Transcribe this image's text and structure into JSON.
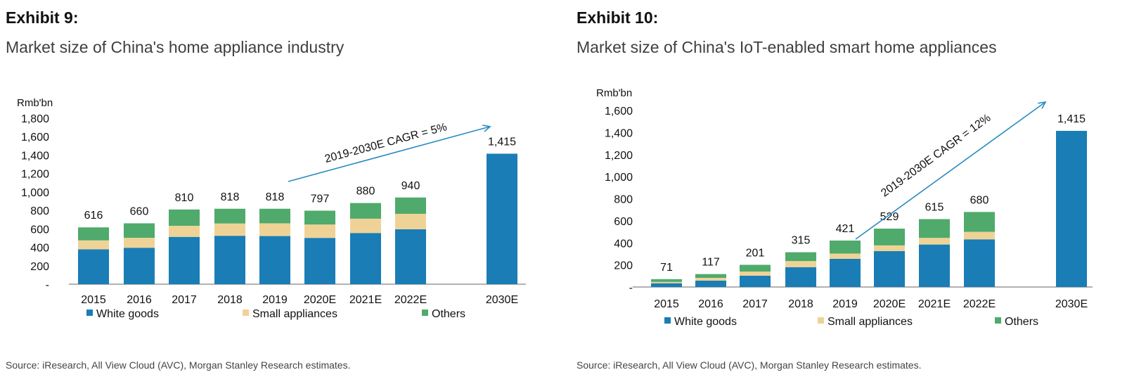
{
  "colors": {
    "white_goods": "#1a7db5",
    "small_appliances": "#efd396",
    "others": "#4faa6c",
    "arrow": "#2a8bc0",
    "axis": "#666666"
  },
  "exhibits": [
    {
      "label": "Exhibit 9:",
      "subtitle": "Market size of China's home appliance industry",
      "source": "Source: iResearch, All View Cloud (AVC), Morgan Stanley Research estimates.",
      "chart_data": {
        "type": "bar",
        "stacked": true,
        "unit": "Rmb'bn",
        "categories": [
          "2015",
          "2016",
          "2017",
          "2018",
          "2019",
          "2020E",
          "2021E",
          "2022E",
          "2030E"
        ],
        "series": [
          {
            "name": "White goods",
            "values": [
              378,
              395,
              513,
              525,
              522,
              502,
              555,
              595,
              1415
            ]
          },
          {
            "name": "Small appliances",
            "values": [
              97,
              108,
              120,
              133,
              138,
              145,
              155,
              168,
              0
            ]
          },
          {
            "name": "Others",
            "values": [
              141,
              157,
              177,
              160,
              158,
              150,
              170,
              177,
              0
            ]
          }
        ],
        "totals": [
          "616",
          "660",
          "810",
          "818",
          "818",
          "797",
          "880",
          "940",
          "1,415"
        ],
        "yticks": [
          "-",
          "200",
          "400",
          "600",
          "800",
          "1,000",
          "1,200",
          "1,400",
          "1,600",
          "1,800"
        ],
        "ylim": [
          0,
          1800
        ],
        "annotation": "2019-2030E CAGR = 5%",
        "legend_position": "bottom",
        "grid": false
      }
    },
    {
      "label": "Exhibit 10:",
      "subtitle": "Market size of China's IoT-enabled smart home appliances",
      "source": "Source: iResearch, All View Cloud (AVC), Morgan Stanley Research estimates.",
      "chart_data": {
        "type": "bar",
        "stacked": true,
        "unit": "Rmb'bn",
        "categories": [
          "2015",
          "2016",
          "2017",
          "2018",
          "2019",
          "2020E",
          "2021E",
          "2022E",
          "2030E"
        ],
        "series": [
          {
            "name": "White goods",
            "values": [
              34,
              58,
              102,
              180,
              255,
              325,
              385,
              432,
              1415
            ]
          },
          {
            "name": "Small appliances",
            "values": [
              12,
              25,
              38,
              55,
              48,
              52,
              60,
              68,
              0
            ]
          },
          {
            "name": "Others",
            "values": [
              25,
              34,
              61,
              80,
              118,
              152,
              170,
              180,
              0
            ]
          }
        ],
        "totals": [
          "71",
          "117",
          "201",
          "315",
          "421",
          "529",
          "615",
          "680",
          "1,415"
        ],
        "yticks": [
          "-",
          "200",
          "400",
          "600",
          "800",
          "1,000",
          "1,200",
          "1,400",
          "1,600"
        ],
        "ylim": [
          0,
          1600
        ],
        "annotation": "2019-2030E CAGR = 12%",
        "legend_position": "bottom",
        "grid": false
      }
    }
  ]
}
